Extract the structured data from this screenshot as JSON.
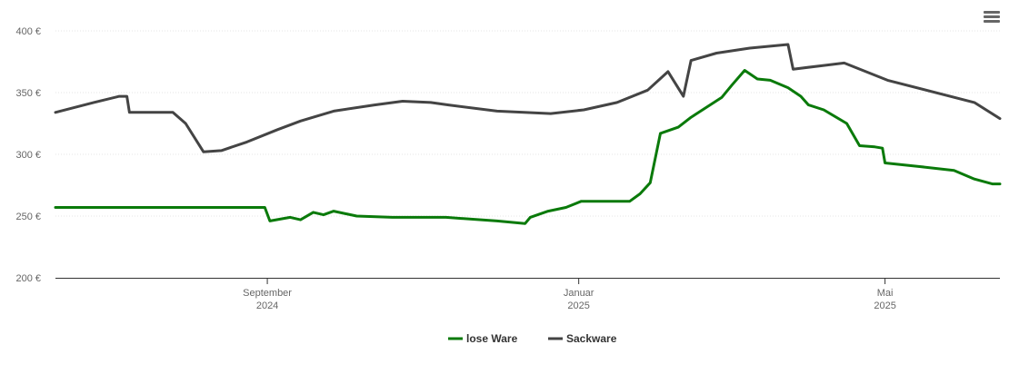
{
  "chart_data": {
    "type": "line",
    "title": "",
    "xlabel": "",
    "ylabel": "",
    "ylim": [
      200,
      400
    ],
    "yticks": [
      200,
      250,
      300,
      350,
      400
    ],
    "y_unit": "€",
    "x_ticks": [
      {
        "date": "2024-09-01",
        "label": [
          "September",
          "2024"
        ]
      },
      {
        "date": "2025-01-01",
        "label": [
          "Januar",
          "2025"
        ]
      },
      {
        "date": "2025-05-01",
        "label": [
          "Mai",
          "2025"
        ]
      }
    ],
    "xlim": [
      "2024-06-10",
      "2025-06-15"
    ],
    "grid": "horizontal",
    "legend_position": "bottom-center",
    "series": [
      {
        "name": "lose Ware",
        "color": "#0a7a0a",
        "points": [
          [
            "2024-06-10",
            257
          ],
          [
            "2024-08-31",
            257
          ],
          [
            "2024-09-02",
            246
          ],
          [
            "2024-09-10",
            249
          ],
          [
            "2024-09-14",
            247
          ],
          [
            "2024-09-19",
            253
          ],
          [
            "2024-09-23",
            251
          ],
          [
            "2024-09-27",
            254
          ],
          [
            "2024-10-06",
            250
          ],
          [
            "2024-10-20",
            249
          ],
          [
            "2024-11-10",
            249
          ],
          [
            "2024-11-30",
            246
          ],
          [
            "2024-12-11",
            244
          ],
          [
            "2024-12-13",
            249
          ],
          [
            "2024-12-20",
            254
          ],
          [
            "2024-12-27",
            257
          ],
          [
            "2025-01-02",
            262
          ],
          [
            "2025-01-21",
            262
          ],
          [
            "2025-01-25",
            268
          ],
          [
            "2025-01-29",
            277
          ],
          [
            "2025-02-02",
            317
          ],
          [
            "2025-02-09",
            322
          ],
          [
            "2025-02-14",
            330
          ],
          [
            "2025-02-26",
            346
          ],
          [
            "2025-03-02",
            356
          ],
          [
            "2025-03-07",
            368
          ],
          [
            "2025-03-12",
            361
          ],
          [
            "2025-03-17",
            360
          ],
          [
            "2025-03-24",
            354
          ],
          [
            "2025-03-29",
            347
          ],
          [
            "2025-04-01",
            340
          ],
          [
            "2025-04-07",
            336
          ],
          [
            "2025-04-16",
            325
          ],
          [
            "2025-04-21",
            307
          ],
          [
            "2025-04-27",
            306
          ],
          [
            "2025-04-30",
            305
          ],
          [
            "2025-05-01",
            293
          ],
          [
            "2025-05-15",
            290
          ],
          [
            "2025-05-28",
            287
          ],
          [
            "2025-06-05",
            280
          ],
          [
            "2025-06-12",
            276
          ],
          [
            "2025-06-15",
            276
          ]
        ]
      },
      {
        "name": "Sackware",
        "color": "#444444",
        "points": [
          [
            "2024-06-10",
            334
          ],
          [
            "2024-06-25",
            342
          ],
          [
            "2024-07-05",
            347
          ],
          [
            "2024-07-08",
            347
          ],
          [
            "2024-07-09",
            334
          ],
          [
            "2024-07-26",
            334
          ],
          [
            "2024-07-31",
            325
          ],
          [
            "2024-08-07",
            302
          ],
          [
            "2024-08-14",
            303
          ],
          [
            "2024-08-24",
            310
          ],
          [
            "2024-09-05",
            320
          ],
          [
            "2024-09-14",
            327
          ],
          [
            "2024-09-27",
            335
          ],
          [
            "2024-10-13",
            340
          ],
          [
            "2024-10-24",
            343
          ],
          [
            "2024-11-04",
            342
          ],
          [
            "2024-11-11",
            340
          ],
          [
            "2024-11-30",
            335
          ],
          [
            "2024-12-21",
            333
          ],
          [
            "2025-01-03",
            336
          ],
          [
            "2025-01-16",
            342
          ],
          [
            "2025-01-28",
            352
          ],
          [
            "2025-02-05",
            367
          ],
          [
            "2025-02-11",
            347
          ],
          [
            "2025-02-14",
            376
          ],
          [
            "2025-02-24",
            382
          ],
          [
            "2025-03-09",
            386
          ],
          [
            "2025-03-24",
            389
          ],
          [
            "2025-03-26",
            369
          ],
          [
            "2025-04-07",
            372
          ],
          [
            "2025-04-15",
            374
          ],
          [
            "2025-05-02",
            360
          ],
          [
            "2025-06-05",
            342
          ],
          [
            "2025-06-15",
            329
          ]
        ]
      }
    ]
  },
  "ui": {
    "menu_icon": "hamburger-menu-icon"
  }
}
